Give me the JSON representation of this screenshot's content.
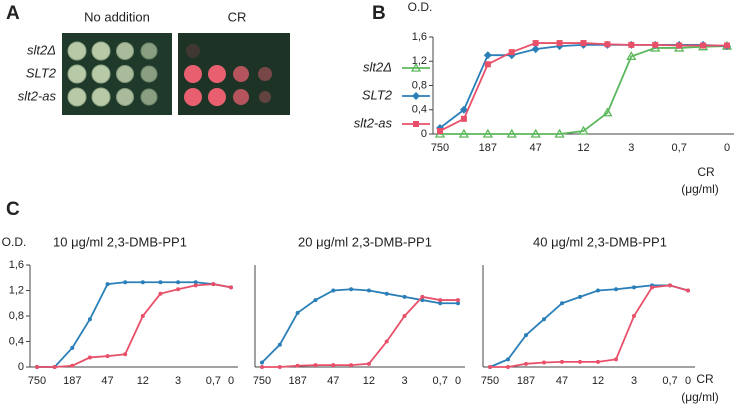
{
  "panel_labels": [
    "A",
    "B",
    "C"
  ],
  "plate": {
    "columns": [
      "No addition",
      "CR"
    ],
    "rows": [
      "slt2Δ",
      "SLT2",
      "slt2-as"
    ]
  },
  "chart_data": [
    {
      "type": "line",
      "y_label": "O.D.",
      "x_label": "CR",
      "x_unit": "(μg/ml)",
      "categories": [
        "750",
        null,
        "187",
        null,
        "47",
        null,
        "12",
        null,
        "3",
        null,
        "0,7",
        null,
        "0"
      ],
      "ylim": [
        0,
        1.6
      ],
      "yticks": [
        0,
        {
          "value": 0.4,
          "label": "0,4"
        },
        {
          "value": 0.8,
          "label": "0,8"
        },
        {
          "value": 1.2,
          "label": "1,2"
        },
        {
          "value": 1.6,
          "label": "1,6"
        }
      ],
      "series": [
        {
          "name": "slt2Δ",
          "color": "#5cb85c",
          "marker": "triangle",
          "values": [
            0,
            0,
            0,
            0,
            0,
            0,
            0.05,
            0.35,
            1.28,
            1.42,
            1.42,
            1.44,
            1.45
          ]
        },
        {
          "name": "SLT2",
          "color": "#2a7fb8",
          "marker": "diamond",
          "values": [
            0.1,
            0.4,
            1.3,
            1.3,
            1.4,
            1.45,
            1.47,
            1.47,
            1.47,
            1.47,
            1.47,
            1.47,
            1.45
          ]
        },
        {
          "name": "slt2-as",
          "color": "#e8506a",
          "marker": "square",
          "values": [
            0.05,
            0.25,
            1.15,
            1.35,
            1.5,
            1.5,
            1.5,
            1.48,
            1.47,
            1.47,
            1.46,
            1.46,
            1.46
          ]
        }
      ]
    },
    {
      "type": "line",
      "title": "10 μg/ml 2,3-DMB-PP1",
      "y_label": "O.D.",
      "categories": [
        "750",
        null,
        "187",
        null,
        "47",
        null,
        "12",
        null,
        "3",
        null,
        "0,7",
        "0"
      ],
      "ylim": [
        0,
        1.6
      ],
      "yticks": [
        0,
        {
          "value": 0.4,
          "label": "0,4"
        },
        {
          "value": 0.8,
          "label": "0,8"
        },
        {
          "value": 1.2,
          "label": "1,2"
        },
        {
          "value": 1.6,
          "label": "1,6"
        }
      ],
      "series": [
        {
          "color": "#2a7fb8",
          "values": [
            0,
            0,
            0.3,
            0.75,
            1.3,
            1.33,
            1.33,
            1.33,
            1.33,
            1.33,
            1.3,
            1.25
          ]
        },
        {
          "color": "#e8506a",
          "values": [
            0,
            0,
            0.02,
            0.15,
            0.17,
            0.2,
            0.8,
            1.15,
            1.22,
            1.28,
            1.3,
            1.25
          ]
        }
      ]
    },
    {
      "type": "line",
      "title": "20 μg/ml 2,3-DMB-PP1",
      "categories": [
        "750",
        null,
        "187",
        null,
        "47",
        null,
        "12",
        null,
        "3",
        null,
        "0,7",
        "0"
      ],
      "ylim": [
        0,
        1.6
      ],
      "series": [
        {
          "color": "#2a7fb8",
          "values": [
            0.07,
            0.35,
            0.85,
            1.05,
            1.2,
            1.22,
            1.2,
            1.15,
            1.1,
            1.05,
            1.0,
            1.0
          ]
        },
        {
          "color": "#e8506a",
          "values": [
            0,
            0,
            0.02,
            0.03,
            0.03,
            0.03,
            0.05,
            0.4,
            0.8,
            1.1,
            1.05,
            1.05
          ]
        }
      ]
    },
    {
      "type": "line",
      "title": "40 μg/ml 2,3-DMB-PP1",
      "x_label": "CR",
      "x_unit": "(μg/ml)",
      "categories": [
        "750",
        null,
        "187",
        null,
        "47",
        null,
        "12",
        null,
        "3",
        null,
        "0,7",
        "0"
      ],
      "ylim": [
        0,
        1.6
      ],
      "series": [
        {
          "color": "#2a7fb8",
          "values": [
            0,
            0.12,
            0.5,
            0.75,
            1.0,
            1.1,
            1.2,
            1.22,
            1.25,
            1.28,
            1.28,
            1.2
          ]
        },
        {
          "color": "#e8506a",
          "values": [
            0,
            0,
            0.05,
            0.07,
            0.08,
            0.08,
            0.08,
            0.12,
            0.8,
            1.25,
            1.28,
            1.2
          ]
        }
      ]
    }
  ]
}
